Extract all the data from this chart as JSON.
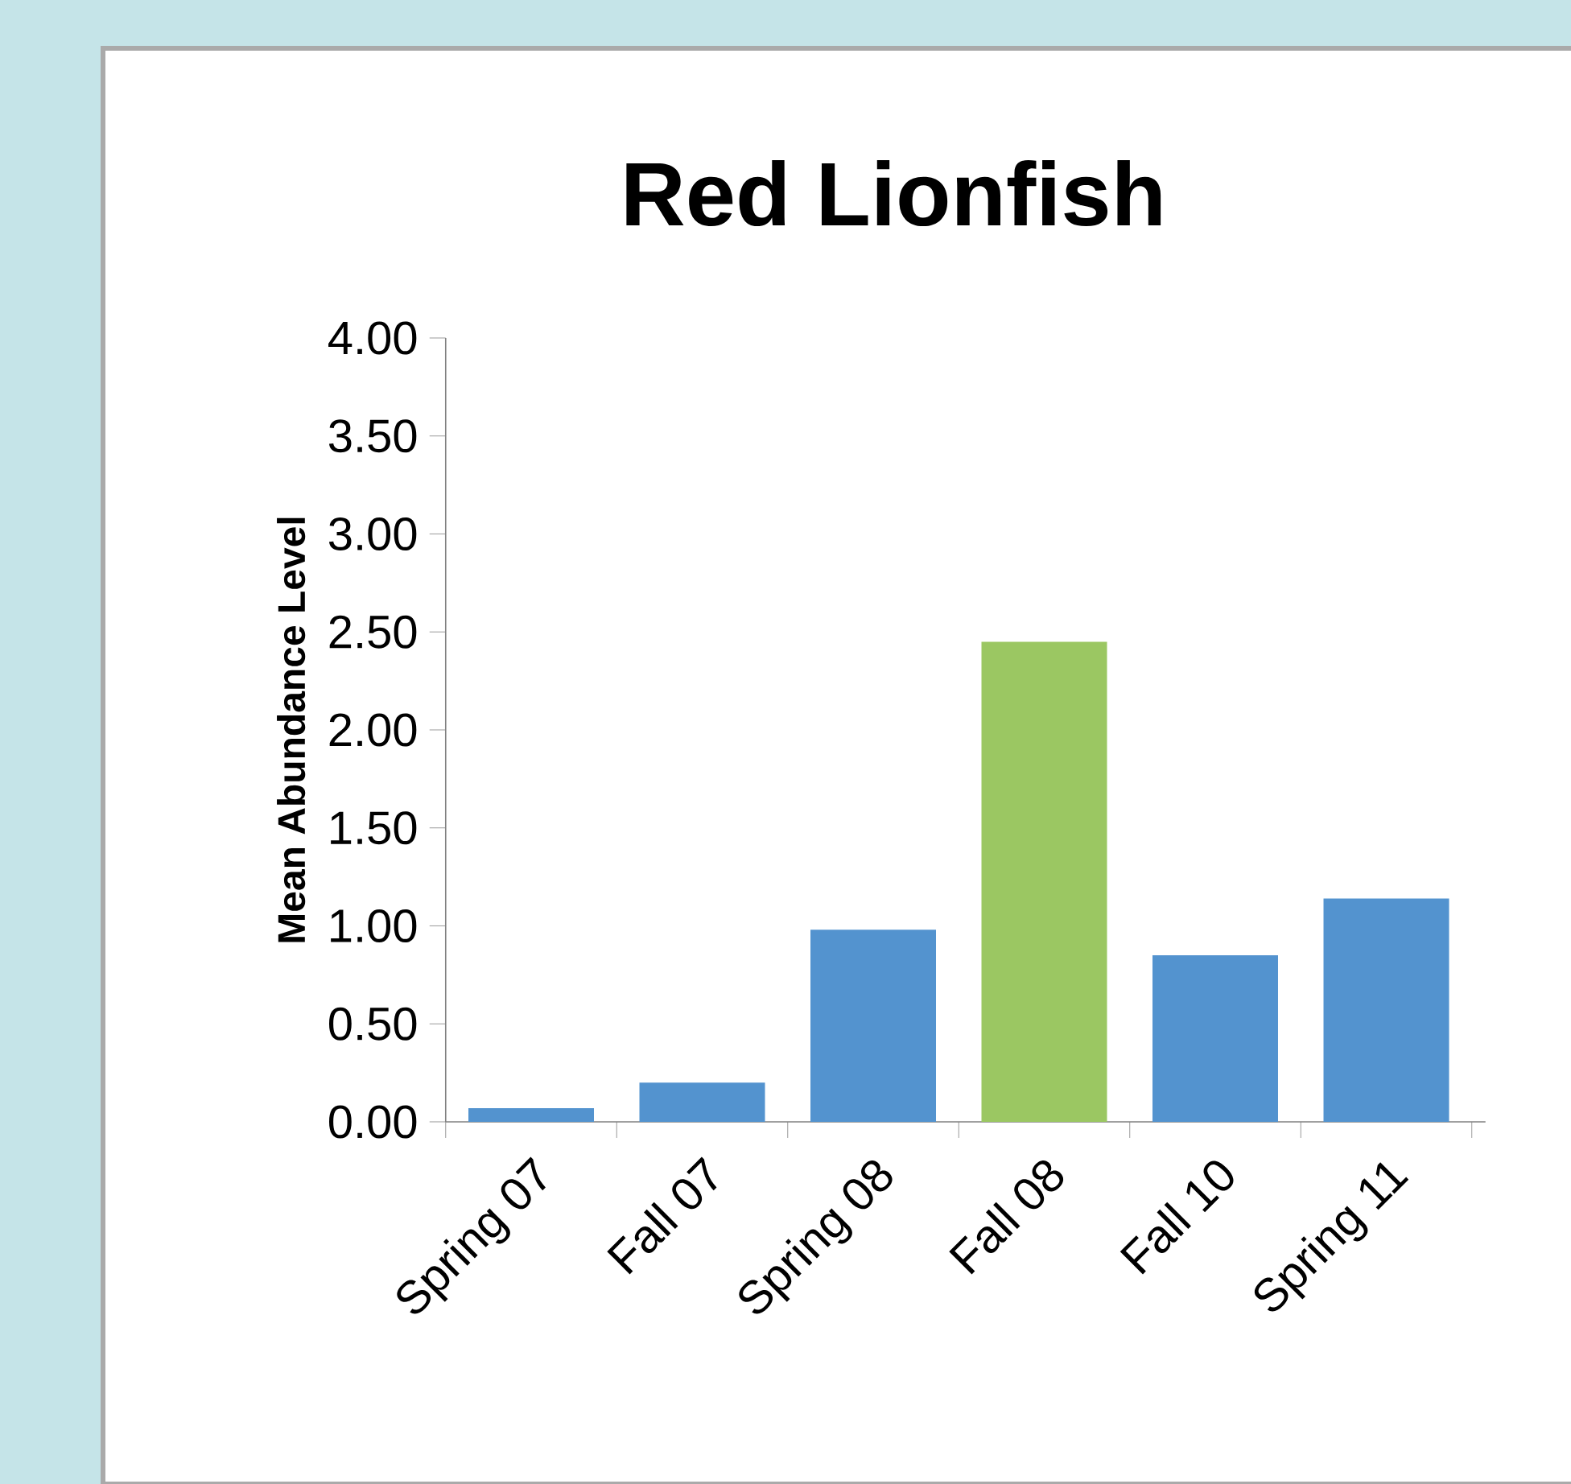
{
  "chart_data": {
    "type": "bar",
    "title": "Red Lionfish",
    "ylabel": "Mean Abundance Level",
    "categories": [
      "Spring 07",
      "Fall 07",
      "Spring 08",
      "Fall 08",
      "Fall 10",
      "Spring 11"
    ],
    "values": [
      0.07,
      0.2,
      0.98,
      2.45,
      0.85,
      1.14
    ],
    "colors": [
      "#5393cf",
      "#5393cf",
      "#5393cf",
      "#9bc762",
      "#5393cf",
      "#5393cf"
    ],
    "ylim": [
      0,
      4
    ],
    "yticks": [
      {
        "value": 0,
        "label": "0.00"
      },
      {
        "value": 0.5,
        "label": "0.50"
      },
      {
        "value": 1,
        "label": "1.00"
      },
      {
        "value": 1.5,
        "label": "1.50"
      },
      {
        "value": 2,
        "label": "2.00"
      },
      {
        "value": 2.5,
        "label": "2.50"
      },
      {
        "value": 3,
        "label": "3.00"
      },
      {
        "value": 3.5,
        "label": "3.50"
      },
      {
        "value": 4,
        "label": "4.00"
      }
    ],
    "grid": false
  }
}
